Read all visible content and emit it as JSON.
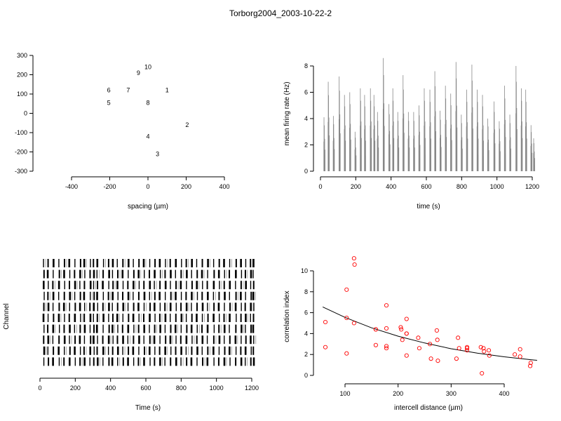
{
  "figure": {
    "title": "Torborg2004_2003-10-22-2"
  },
  "chart_data": [
    {
      "type": "scatter",
      "panel": "electrode-layout",
      "xlabel": "spacing (µm)",
      "ylabel": "",
      "xlim": [
        -480,
        400
      ],
      "ylim": [
        -300,
        300
      ],
      "xticks": [
        -400,
        -200,
        0,
        200,
        400
      ],
      "yticks": [
        -300,
        -200,
        -100,
        0,
        100,
        200,
        300
      ],
      "points": [
        {
          "label": "1",
          "x": 100,
          "y": 120
        },
        {
          "label": "2",
          "x": 205,
          "y": -60
        },
        {
          "label": "3",
          "x": 50,
          "y": -210
        },
        {
          "label": "4",
          "x": 0,
          "y": -120
        },
        {
          "label": "5",
          "x": -205,
          "y": 55
        },
        {
          "label": "6",
          "x": -205,
          "y": 120
        },
        {
          "label": "7",
          "x": -103,
          "y": 120
        },
        {
          "label": "8",
          "x": 0,
          "y": 55
        },
        {
          "label": "9",
          "x": -50,
          "y": 210
        },
        {
          "label": "10",
          "x": 0,
          "y": 240
        }
      ]
    },
    {
      "type": "bar",
      "panel": "mean-firing-rate",
      "xlabel": "time (s)",
      "ylabel": "mean firing rate (Hz)",
      "xlim": [
        0,
        1220
      ],
      "ylim": [
        0,
        8
      ],
      "xticks": [
        0,
        200,
        400,
        600,
        800,
        1000,
        1200
      ],
      "yticks": [
        0,
        2,
        4,
        6,
        8
      ],
      "bin_width": 1,
      "color": "#888888",
      "bursts": [
        {
          "t": 22,
          "peak": 4.1
        },
        {
          "t": 46,
          "peak": 6.8
        },
        {
          "t": 75,
          "peak": 4.2
        },
        {
          "t": 108,
          "peak": 7.2
        },
        {
          "t": 138,
          "peak": 5.8
        },
        {
          "t": 168,
          "peak": 6.0
        },
        {
          "t": 198,
          "peak": 3.0
        },
        {
          "t": 228,
          "peak": 6.3
        },
        {
          "t": 252,
          "peak": 5.8
        },
        {
          "t": 285,
          "peak": 6.3
        },
        {
          "t": 305,
          "peak": 5.8
        },
        {
          "t": 325,
          "peak": 4.5
        },
        {
          "t": 358,
          "peak": 8.6
        },
        {
          "t": 390,
          "peak": 5.1
        },
        {
          "t": 412,
          "peak": 6.3
        },
        {
          "t": 440,
          "peak": 4.5
        },
        {
          "t": 470,
          "peak": 7.3
        },
        {
          "t": 500,
          "peak": 4.5
        },
        {
          "t": 530,
          "peak": 4.5
        },
        {
          "t": 560,
          "peak": 5.0
        },
        {
          "t": 590,
          "peak": 6.3
        },
        {
          "t": 622,
          "peak": 6.2
        },
        {
          "t": 650,
          "peak": 7.6
        },
        {
          "t": 680,
          "peak": 4.6
        },
        {
          "t": 710,
          "peak": 6.5
        },
        {
          "t": 740,
          "peak": 5.9
        },
        {
          "t": 770,
          "peak": 8.3
        },
        {
          "t": 800,
          "peak": 4.3
        },
        {
          "t": 830,
          "peak": 6.2
        },
        {
          "t": 860,
          "peak": 8.1
        },
        {
          "t": 890,
          "peak": 6.2
        },
        {
          "t": 920,
          "peak": 5.8
        },
        {
          "t": 950,
          "peak": 4.0
        },
        {
          "t": 985,
          "peak": 5.3
        },
        {
          "t": 1015,
          "peak": 3.8
        },
        {
          "t": 1045,
          "peak": 6.5
        },
        {
          "t": 1075,
          "peak": 4.3
        },
        {
          "t": 1110,
          "peak": 8.0
        },
        {
          "t": 1140,
          "peak": 6.3
        },
        {
          "t": 1165,
          "peak": 6.2
        },
        {
          "t": 1195,
          "peak": 3.5
        },
        {
          "t": 1210,
          "peak": 2.5
        }
      ]
    },
    {
      "type": "raster",
      "panel": "spike-raster",
      "xlabel": "Time (s)",
      "ylabel": "Channel",
      "xlim": [
        0,
        1220
      ],
      "xticks": [
        0,
        200,
        400,
        600,
        800,
        1000,
        1200
      ],
      "channels": 10,
      "burst_times": [
        22,
        46,
        75,
        108,
        138,
        168,
        198,
        228,
        252,
        285,
        305,
        325,
        358,
        390,
        412,
        440,
        470,
        500,
        530,
        560,
        590,
        622,
        650,
        680,
        710,
        740,
        770,
        800,
        830,
        860,
        890,
        920,
        950,
        985,
        1015,
        1045,
        1075,
        1110,
        1140,
        1165,
        1195,
        1210
      ]
    },
    {
      "type": "scatter",
      "panel": "correlation-index",
      "xlabel": "intercell distance (µm)",
      "ylabel": "correlation index",
      "xlim": [
        58,
        462
      ],
      "ylim": [
        0,
        11.5
      ],
      "xticks": [
        100,
        200,
        300,
        400
      ],
      "yticks": [
        0,
        2,
        4,
        6,
        8,
        10
      ],
      "marker_color": "#ff0000",
      "points": [
        [
          63,
          5.1
        ],
        [
          63,
          2.7
        ],
        [
          103,
          8.2
        ],
        [
          103,
          5.5
        ],
        [
          103,
          2.1
        ],
        [
          117,
          11.2
        ],
        [
          118,
          10.6
        ],
        [
          117,
          5.0
        ],
        [
          158,
          4.4
        ],
        [
          158,
          4.4
        ],
        [
          158,
          2.9
        ],
        [
          178,
          6.7
        ],
        [
          178,
          4.5
        ],
        [
          178,
          2.8
        ],
        [
          178,
          2.6
        ],
        [
          205,
          4.6
        ],
        [
          206,
          4.4
        ],
        [
          208,
          3.4
        ],
        [
          216,
          5.4
        ],
        [
          216,
          4.0
        ],
        [
          216,
          4.0
        ],
        [
          216,
          1.9
        ],
        [
          238,
          3.6
        ],
        [
          240,
          2.6
        ],
        [
          260,
          3.0
        ],
        [
          262,
          1.6
        ],
        [
          273,
          4.3
        ],
        [
          274,
          3.4
        ],
        [
          275,
          1.4
        ],
        [
          310,
          1.6
        ],
        [
          313,
          3.6
        ],
        [
          315,
          2.6
        ],
        [
          330,
          2.7
        ],
        [
          330,
          2.6
        ],
        [
          330,
          2.4
        ],
        [
          356,
          2.7
        ],
        [
          358,
          0.2
        ],
        [
          361,
          2.6
        ],
        [
          362,
          2.3
        ],
        [
          371,
          2.4
        ],
        [
          372,
          1.9
        ],
        [
          420,
          2.0
        ],
        [
          430,
          2.5
        ],
        [
          430,
          1.8
        ],
        [
          450,
          1.2
        ],
        [
          449,
          0.9
        ]
      ],
      "fit_curve": [
        [
          58,
          6.55
        ],
        [
          100,
          5.55
        ],
        [
          150,
          4.55
        ],
        [
          200,
          3.75
        ],
        [
          250,
          3.1
        ],
        [
          300,
          2.55
        ],
        [
          350,
          2.12
        ],
        [
          400,
          1.78
        ],
        [
          450,
          1.5
        ],
        [
          462,
          1.44
        ]
      ]
    }
  ]
}
